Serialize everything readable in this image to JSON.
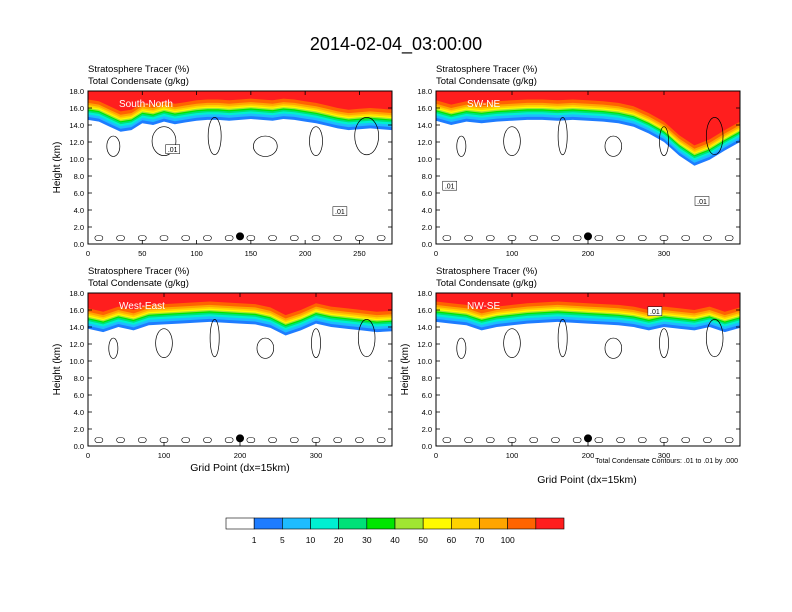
{
  "figure": {
    "title": "2014-02-04_03:00:00",
    "xlabel": "Grid Point (dx=15km)",
    "contour_note": "Total Condensate Contours: .01 to .01 by .000"
  },
  "colors": {
    "levels": [
      "#ffffff",
      "#1e7cff",
      "#1ebcff",
      "#00f0d2",
      "#00e178",
      "#00e600",
      "#a0e632",
      "#fffa00",
      "#ffd200",
      "#ffa500",
      "#ff6400",
      "#ff1e1e"
    ],
    "colorbar_labels": [
      "1",
      "5",
      "10",
      "20",
      "30",
      "40",
      "50",
      "60",
      "70",
      "100"
    ]
  },
  "chart_data": [
    {
      "type": "heatmap",
      "panel": "South-North",
      "title_line1": "Stratosphere Tracer   (%)",
      "title_line2": "Total Condensate   (g/kg)",
      "ylabel": "Height (km)",
      "xlim": [
        0,
        280
      ],
      "ylim": [
        0,
        18
      ],
      "xticks": [
        "0",
        "50",
        "100",
        "150",
        "200",
        "250"
      ],
      "xtick_values": [
        0,
        50,
        100,
        150,
        200,
        250
      ],
      "yticks": [
        "0.0",
        "2.0",
        "4.0",
        "6.0",
        "8.0",
        "10.0",
        "12.0",
        "14.0",
        "16.0",
        "18.0"
      ],
      "tracer_top_km": [
        16.2,
        16.0,
        15.4,
        14.8,
        15.0,
        15.8,
        15.6,
        16.0,
        15.7,
        15.9,
        16.1,
        16.2,
        16.2,
        16.1,
        16.2,
        16.3,
        16.2,
        16.1,
        16.3,
        16.2,
        16.0,
        15.8,
        15.5,
        15.2,
        15.0,
        15.1,
        15.2,
        15.1,
        15.0
      ],
      "tracer_top_x": [
        0,
        10,
        20,
        30,
        40,
        50,
        60,
        70,
        80,
        90,
        100,
        110,
        120,
        130,
        140,
        150,
        160,
        170,
        180,
        190,
        200,
        210,
        220,
        230,
        240,
        250,
        260,
        270,
        280
      ],
      "contour_labels": [
        ".01",
        ".01"
      ],
      "contour_label_pos": [
        [
          78,
          11.1
        ],
        [
          232,
          3.8
        ]
      ],
      "marker": [
        140,
        0.9
      ]
    },
    {
      "type": "heatmap",
      "panel": "SW-NE",
      "title_line1": "Stratosphere Tracer   (%)",
      "title_line2": "Total Condensate   (g/kg)",
      "ylabel": "",
      "xlim": [
        0,
        400
      ],
      "ylim": [
        0,
        18
      ],
      "xticks": [
        "0",
        "100",
        "200",
        "300"
      ],
      "xtick_values": [
        0,
        100,
        200,
        300
      ],
      "yticks": [
        "0.0",
        "2.0",
        "4.0",
        "6.0",
        "8.0",
        "10.0",
        "12.0",
        "14.0",
        "16.0",
        "18.0"
      ],
      "tracer_top_x": [
        0,
        20,
        40,
        60,
        80,
        100,
        120,
        140,
        160,
        180,
        200,
        220,
        240,
        260,
        280,
        300,
        320,
        340,
        360,
        380,
        400
      ],
      "tracer_top_km": [
        16.1,
        15.6,
        16.0,
        15.8,
        16.0,
        16.1,
        16.2,
        16.2,
        16.1,
        16.2,
        16.1,
        16.0,
        15.8,
        15.4,
        14.6,
        13.6,
        12.0,
        10.8,
        11.5,
        12.6,
        13.6
      ],
      "contour_labels": [
        ".01",
        ".01"
      ],
      "contour_label_pos": [
        [
          18,
          6.8
        ],
        [
          350,
          5.0
        ]
      ],
      "marker": [
        200,
        0.9
      ]
    },
    {
      "type": "heatmap",
      "panel": "West-East",
      "title_line1": "Stratosphere Tracer   (%)",
      "title_line2": "Total Condensate   (g/kg)",
      "ylabel": "Height (km)",
      "xlim": [
        0,
        400
      ],
      "ylim": [
        0,
        18
      ],
      "xticks": [
        "0",
        "100",
        "200",
        "300"
      ],
      "xtick_values": [
        0,
        100,
        200,
        300
      ],
      "yticks": [
        "0.0",
        "2.0",
        "4.0",
        "6.0",
        "8.0",
        "10.0",
        "12.0",
        "14.0",
        "16.0",
        "18.0"
      ],
      "tracer_top_x": [
        0,
        20,
        40,
        60,
        80,
        100,
        120,
        140,
        160,
        180,
        200,
        220,
        240,
        260,
        280,
        300,
        320,
        340,
        360,
        380,
        400
      ],
      "tracer_top_km": [
        15.4,
        15.0,
        15.6,
        15.2,
        15.8,
        15.9,
        16.0,
        16.1,
        16.2,
        16.1,
        16.0,
        15.9,
        15.5,
        14.6,
        15.2,
        16.0,
        15.6,
        15.4,
        15.2,
        15.0,
        15.1
      ],
      "contour_labels": [],
      "contour_label_pos": [],
      "marker": [
        200,
        0.9
      ]
    },
    {
      "type": "heatmap",
      "panel": "NW-SE",
      "title_line1": "Stratosphere Tracer   (%)",
      "title_line2": "Total Condensate   (g/kg)",
      "ylabel": "Height (km)",
      "xlim": [
        0,
        400
      ],
      "ylim": [
        0,
        18
      ],
      "xticks": [
        "0",
        "100",
        "200",
        "300"
      ],
      "xtick_values": [
        0,
        100,
        200,
        300
      ],
      "yticks": [
        "0.0",
        "2.0",
        "4.0",
        "6.0",
        "8.0",
        "10.0",
        "12.0",
        "14.0",
        "16.0",
        "18.0"
      ],
      "tracer_top_x": [
        0,
        20,
        40,
        60,
        80,
        100,
        120,
        140,
        160,
        180,
        200,
        220,
        240,
        260,
        280,
        300,
        320,
        340,
        360,
        380,
        400
      ],
      "tracer_top_km": [
        16.2,
        16.0,
        15.8,
        15.2,
        15.6,
        15.8,
        16.0,
        16.1,
        16.2,
        16.1,
        16.0,
        15.9,
        15.8,
        15.6,
        15.2,
        15.6,
        15.4,
        15.2,
        15.6,
        15.0,
        15.5
      ],
      "contour_labels": [
        ".01"
      ],
      "contour_label_pos": [
        [
          288,
          15.8
        ]
      ],
      "marker": [
        200,
        0.9
      ]
    }
  ]
}
